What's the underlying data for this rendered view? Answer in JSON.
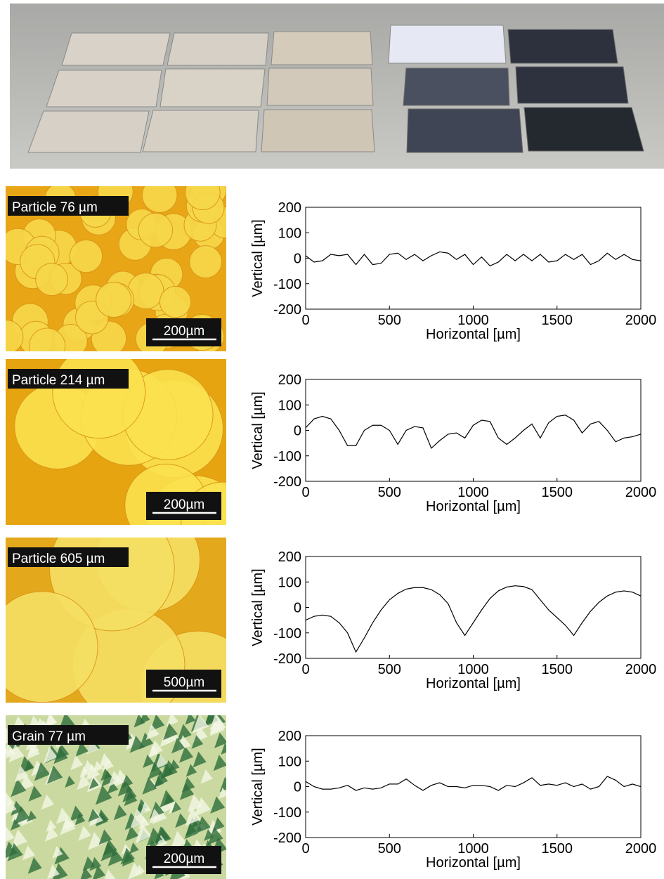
{
  "micrographs": [
    {
      "label": "Particle 76 µm",
      "scale_bar": "200µm"
    },
    {
      "label": "Particle 214 µm",
      "scale_bar": "200µm"
    },
    {
      "label": "Particle 605 µm",
      "scale_bar": "500µm"
    },
    {
      "label": "Grain 77 µm",
      "scale_bar": "200µm"
    }
  ],
  "chart_data": [
    {
      "type": "line",
      "xlabel": "Horizontal [µm]",
      "ylabel": "Vertical [µm]",
      "xlim": [
        0,
        2000
      ],
      "ylim": [
        -200,
        200
      ],
      "xticks": [
        0,
        500,
        1000,
        1500,
        2000
      ],
      "yticks": [
        -200,
        -100,
        0,
        100,
        200
      ],
      "x": [
        0,
        50,
        100,
        150,
        200,
        250,
        300,
        350,
        400,
        450,
        500,
        550,
        600,
        650,
        700,
        750,
        800,
        850,
        900,
        950,
        1000,
        1050,
        1100,
        1150,
        1200,
        1250,
        1300,
        1350,
        1400,
        1450,
        1500,
        1550,
        1600,
        1650,
        1700,
        1750,
        1800,
        1850,
        1900,
        1950,
        2000
      ],
      "series": [
        {
          "color": "#000000",
          "values": [
            10,
            -15,
            -10,
            15,
            10,
            15,
            -25,
            15,
            -25,
            -20,
            15,
            20,
            -5,
            15,
            -10,
            10,
            25,
            20,
            -5,
            15,
            -25,
            5,
            -30,
            -15,
            15,
            -10,
            15,
            -10,
            15,
            -15,
            -10,
            15,
            -5,
            15,
            -25,
            -10,
            20,
            -5,
            15,
            -5,
            -10
          ]
        }
      ]
    },
    {
      "type": "line",
      "xlabel": "Horizontal [µm]",
      "ylabel": "Vertical [µm]",
      "xlim": [
        0,
        2000
      ],
      "ylim": [
        -200,
        200
      ],
      "xticks": [
        0,
        500,
        1000,
        1500,
        2000
      ],
      "yticks": [
        -200,
        -100,
        0,
        100,
        200
      ],
      "x": [
        0,
        50,
        100,
        150,
        200,
        250,
        300,
        350,
        400,
        450,
        500,
        550,
        600,
        650,
        700,
        750,
        800,
        850,
        900,
        950,
        1000,
        1050,
        1100,
        1150,
        1200,
        1250,
        1300,
        1350,
        1400,
        1450,
        1500,
        1550,
        1600,
        1650,
        1700,
        1750,
        1800,
        1850,
        1900,
        1950,
        2000
      ],
      "series": [
        {
          "color": "#000000",
          "values": [
            10,
            45,
            55,
            45,
            0,
            -60,
            -60,
            0,
            20,
            20,
            0,
            -55,
            0,
            15,
            10,
            -70,
            -40,
            -15,
            -10,
            -30,
            20,
            40,
            35,
            -30,
            -55,
            -30,
            0,
            25,
            -30,
            30,
            55,
            60,
            40,
            -10,
            25,
            35,
            0,
            -45,
            -30,
            -25,
            -15
          ]
        }
      ]
    },
    {
      "type": "line",
      "xlabel": "Horizontal [µm]",
      "ylabel": "Vertical [µm]",
      "xlim": [
        0,
        2000
      ],
      "ylim": [
        -200,
        200
      ],
      "xticks": [
        0,
        500,
        1000,
        1500,
        2000
      ],
      "yticks": [
        -200,
        -100,
        0,
        100,
        200
      ],
      "x": [
        0,
        50,
        100,
        150,
        200,
        250,
        300,
        350,
        400,
        450,
        500,
        550,
        600,
        650,
        700,
        750,
        800,
        850,
        900,
        950,
        1000,
        1050,
        1100,
        1150,
        1200,
        1250,
        1300,
        1350,
        1400,
        1450,
        1500,
        1550,
        1600,
        1650,
        1700,
        1750,
        1800,
        1850,
        1900,
        1950,
        2000
      ],
      "series": [
        {
          "color": "#000000",
          "values": [
            -50,
            -35,
            -30,
            -35,
            -60,
            -100,
            -175,
            -120,
            -60,
            -10,
            30,
            55,
            72,
            78,
            78,
            70,
            50,
            15,
            -60,
            -110,
            -60,
            -10,
            35,
            65,
            80,
            85,
            82,
            70,
            30,
            -10,
            -40,
            -70,
            -110,
            -60,
            -15,
            20,
            45,
            60,
            65,
            60,
            45
          ]
        }
      ]
    },
    {
      "type": "line",
      "xlabel": "Horizontal [µm]",
      "ylabel": "Vertical [µm]",
      "xlim": [
        0,
        2000
      ],
      "ylim": [
        -200,
        200
      ],
      "xticks": [
        0,
        500,
        1000,
        1500,
        2000
      ],
      "yticks": [
        -200,
        -100,
        0,
        100,
        200
      ],
      "x": [
        0,
        50,
        100,
        150,
        200,
        250,
        300,
        350,
        400,
        450,
        500,
        550,
        600,
        650,
        700,
        750,
        800,
        850,
        900,
        950,
        1000,
        1050,
        1100,
        1150,
        1200,
        1250,
        1300,
        1350,
        1400,
        1450,
        1500,
        1550,
        1600,
        1650,
        1700,
        1750,
        1800,
        1850,
        1900,
        1950,
        2000
      ],
      "series": [
        {
          "color": "#000000",
          "values": [
            20,
            0,
            -10,
            -10,
            -5,
            5,
            -15,
            -5,
            -10,
            -5,
            10,
            10,
            30,
            5,
            -15,
            5,
            15,
            0,
            0,
            -5,
            5,
            5,
            0,
            -15,
            5,
            0,
            15,
            35,
            5,
            10,
            5,
            15,
            0,
            10,
            -10,
            0,
            40,
            25,
            0,
            10,
            0
          ]
        }
      ]
    }
  ]
}
